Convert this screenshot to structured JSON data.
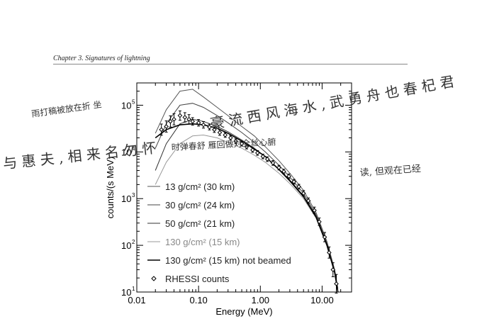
{
  "page": {
    "header": "Chapter 3.  Signatures of lightning"
  },
  "handwriting": [
    "雨打稿被放在折 坐",
    "豪 流 西 风 海 水 , 武 勇 舟 也 春 杞 君",
    "与 惠 夫 , 相 来 名 勿 怀",
    "时弹春舒 雁回做对全丝心腑",
    "读, 但观在已经"
  ],
  "chart_data": {
    "type": "line",
    "xlabel": "Energy (MeV)",
    "ylabel": "counts/(s MeV)",
    "xscale": "log",
    "yscale": "log",
    "xlim": [
      0.01,
      30
    ],
    "ylim": [
      10,
      300000
    ],
    "xticks": [
      "0.01",
      "0.10",
      "1.00",
      "10.00"
    ],
    "yticks": [
      "10",
      "10",
      "10",
      "10",
      "10"
    ],
    "ytick_exp": [
      "5",
      "4",
      "3",
      "2",
      "1"
    ],
    "legend_position": "lower-left",
    "series": [
      {
        "name": "13 g/cm² (30 km)",
        "color": "#555555",
        "x": [
          0.02,
          0.03,
          0.05,
          0.08,
          0.12,
          0.2,
          0.3,
          0.5,
          0.8,
          1.2,
          2,
          3,
          5,
          8,
          12,
          16,
          18
        ],
        "y": [
          25000,
          80000,
          200000,
          220000,
          150000,
          90000,
          60000,
          35000,
          22000,
          13000,
          6500,
          3500,
          1500,
          500,
          120,
          30,
          12
        ]
      },
      {
        "name": "30 g/cm² (24 km)",
        "color": "#444444",
        "x": [
          0.02,
          0.03,
          0.05,
          0.08,
          0.12,
          0.2,
          0.3,
          0.5,
          0.8,
          1.2,
          2,
          3,
          5,
          8,
          12,
          16,
          18
        ],
        "y": [
          12000,
          40000,
          100000,
          110000,
          90000,
          60000,
          42000,
          26000,
          16000,
          10000,
          5200,
          2900,
          1300,
          450,
          110,
          28,
          11
        ]
      },
      {
        "name": "50 g/cm² (21 km)",
        "color": "#333333",
        "x": [
          0.02,
          0.03,
          0.05,
          0.08,
          0.12,
          0.2,
          0.3,
          0.5,
          0.8,
          1.2,
          2,
          3,
          5,
          8,
          12,
          16,
          18
        ],
        "y": [
          4000,
          15000,
          40000,
          50000,
          45000,
          35000,
          27000,
          18000,
          12000,
          8000,
          4300,
          2500,
          1150,
          420,
          100,
          26,
          10
        ]
      },
      {
        "name": "130 g/cm² (15 km)",
        "color": "#999999",
        "x": [
          0.02,
          0.03,
          0.05,
          0.08,
          0.12,
          0.2,
          0.3,
          0.5,
          0.8,
          1.2,
          2,
          3,
          5,
          8,
          12,
          16,
          18
        ],
        "y": [
          2000,
          6000,
          15000,
          22000,
          23000,
          20000,
          16000,
          12000,
          8500,
          6000,
          3500,
          2100,
          1000,
          380,
          95,
          25,
          10
        ]
      },
      {
        "name": "130 g/cm² (15 km) not beamed",
        "color": "#000000",
        "x": [
          0.02,
          0.03,
          0.05,
          0.08,
          0.12,
          0.2,
          0.3,
          0.5,
          0.8,
          1.2,
          2,
          3,
          5,
          8,
          12,
          16,
          18
        ],
        "y": [
          20000,
          30000,
          38000,
          40000,
          38000,
          32000,
          25000,
          17000,
          11500,
          8000,
          4200,
          2400,
          1100,
          400,
          100,
          26,
          10
        ]
      }
    ],
    "points": {
      "name": "RHESSI counts",
      "x": [
        0.025,
        0.03,
        0.035,
        0.04,
        0.05,
        0.06,
        0.07,
        0.08,
        0.1,
        0.12,
        0.15,
        0.18,
        0.22,
        0.27,
        0.33,
        0.4,
        0.5,
        0.6,
        0.75,
        0.9,
        1.1,
        1.3,
        1.6,
        2,
        2.4,
        2.9,
        3.5,
        4.2,
        5,
        6,
        7.5,
        9,
        11,
        13,
        15,
        17
      ],
      "y": [
        30000,
        35000,
        45000,
        50000,
        60000,
        55000,
        50000,
        45000,
        42000,
        38000,
        34000,
        30000,
        26000,
        23000,
        20000,
        17000,
        15000,
        13000,
        11000,
        9500,
        8000,
        7000,
        5800,
        4600,
        3800,
        3000,
        2300,
        1800,
        1300,
        900,
        560,
        320,
        150,
        70,
        30,
        15
      ],
      "err": [
        0.12,
        0.12,
        0.12,
        0.12,
        0.1,
        0.1,
        0.1,
        0.08,
        0.07,
        0.07,
        0.06,
        0.06,
        0.06,
        0.05,
        0.05,
        0.05,
        0.05,
        0.05,
        0.05,
        0.05,
        0.05,
        0.05,
        0.05,
        0.05,
        0.05,
        0.05,
        0.05,
        0.05,
        0.06,
        0.06,
        0.07,
        0.08,
        0.1,
        0.12,
        0.15,
        0.2
      ]
    }
  }
}
